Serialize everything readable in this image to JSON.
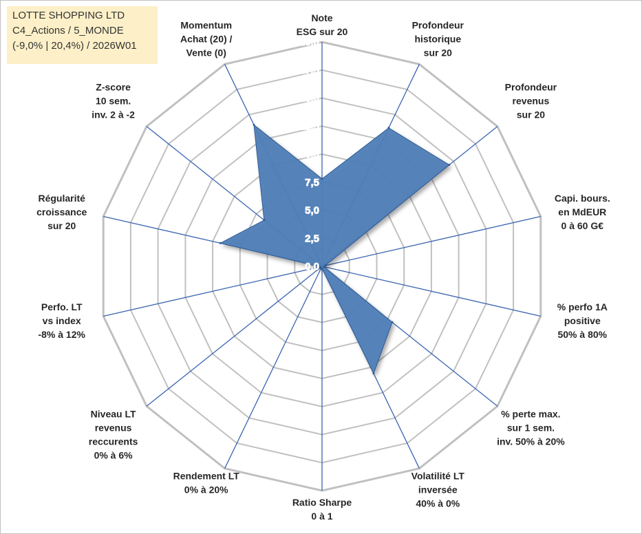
{
  "title_box": {
    "line1": "LOTTE SHOPPING LTD",
    "line2": "C4_Actions / 5_MONDE",
    "line3": "(-9,0% | 20,4%) / 2026W01"
  },
  "colors": {
    "fill": "#4f7eb7",
    "stroke": "#2e5a94",
    "spoke": "#3a64b0",
    "grid": "#c0c0c0",
    "title_bg": "#fdf0c8"
  },
  "chart_data": {
    "type": "radar",
    "rmin": 0,
    "rmax": 20,
    "tick_step": 2.5,
    "tick_labels": [
      "0,0",
      "2,5",
      "5,0",
      "7,5",
      "10,0",
      "12,5",
      "15,0",
      "17,5",
      "20,0"
    ],
    "axes": [
      {
        "label": [
          "Note",
          "ESG sur 20"
        ],
        "value": 7.8
      },
      {
        "label": [
          "Profondeur",
          "historique",
          "sur 20"
        ],
        "value": 13.7
      },
      {
        "label": [
          "Profondeur",
          "revenus",
          "sur 20"
        ],
        "value": 14.5
      },
      {
        "label": [
          "Capi. bours.",
          "en MdEUR",
          "0 à 60 G€"
        ],
        "value": 0.3
      },
      {
        "label": [
          "% perfo 1A",
          "positive",
          "50% à 80%"
        ],
        "value": 0.2
      },
      {
        "label": [
          "% perte max.",
          "sur 1 sem.",
          "inv. 50% à 20%"
        ],
        "value": 8.0
      },
      {
        "label": [
          "Volatilité LT",
          "inversée",
          "40% à 0%"
        ],
        "value": 10.6
      },
      {
        "label": [
          "Ratio Sharpe",
          "0 à 1"
        ],
        "value": 0.2
      },
      {
        "label": [
          "Rendement LT",
          "0% à 20%"
        ],
        "value": 0.2
      },
      {
        "label": [
          "Niveau LT",
          "revenus",
          "reccurents",
          "0% à 6%"
        ],
        "value": 0.2
      },
      {
        "label": [
          "Perfo. LT",
          "vs index",
          "-8% à 12%"
        ],
        "value": 0.2
      },
      {
        "label": [
          "Régularité",
          "croissance",
          "sur 20"
        ],
        "value": 9.3
      },
      {
        "label": [
          "Z-score",
          "10 sem.",
          "inv. 2 à -2"
        ],
        "value": 6.6
      },
      {
        "label": [
          "Momentum",
          "Achat (20) /",
          "Vente (0)"
        ],
        "value": 14.0
      }
    ]
  }
}
